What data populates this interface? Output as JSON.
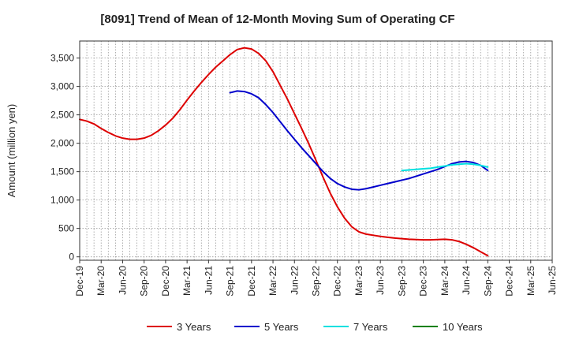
{
  "chart_data": {
    "type": "line",
    "title": "[8091]  Trend of Mean of 12-Month Moving Sum of Operating CF",
    "xlabel": "",
    "ylabel": "Amount (million yen)",
    "ylim": [
      -60,
      3800
    ],
    "yticks": [
      0,
      500,
      1000,
      1500,
      2000,
      2500,
      3000,
      3500
    ],
    "ytick_labels": [
      "0",
      "500",
      "1,000",
      "1,500",
      "2,000",
      "2,500",
      "3,000",
      "3,500"
    ],
    "xlim": [
      0,
      66
    ],
    "xticks": [
      0,
      3,
      6,
      9,
      12,
      15,
      18,
      21,
      24,
      27,
      30,
      33,
      36,
      39,
      42,
      45,
      48,
      51,
      54,
      57,
      60,
      63,
      66
    ],
    "xtick_labels": [
      "Dec-19",
      "Mar-20",
      "Jun-20",
      "Sep-20",
      "Dec-20",
      "Mar-21",
      "Jun-21",
      "Sep-21",
      "Dec-21",
      "Mar-22",
      "Jun-22",
      "Sep-22",
      "Dec-22",
      "Mar-23",
      "Jun-23",
      "Sep-23",
      "Dec-23",
      "Mar-24",
      "Jun-24",
      "Sep-24",
      "Dec-24",
      "Mar-25",
      "Jun-25"
    ],
    "grid": true,
    "legend_position": "bottom",
    "series": [
      {
        "name": "3 Years",
        "color": "#dd0000",
        "x": [
          0,
          1,
          2,
          3,
          4,
          5,
          6,
          7,
          8,
          9,
          10,
          11,
          12,
          13,
          14,
          15,
          16,
          17,
          18,
          19,
          20,
          21,
          22,
          23,
          24,
          25,
          26,
          27,
          28,
          29,
          30,
          31,
          32,
          33,
          34,
          35,
          36,
          37,
          38,
          39,
          40,
          41,
          42,
          43,
          44,
          45,
          46,
          47,
          48,
          49,
          50,
          51,
          52,
          53,
          54,
          55,
          56,
          57
        ],
        "values": [
          2420,
          2390,
          2340,
          2260,
          2190,
          2130,
          2090,
          2070,
          2070,
          2090,
          2140,
          2220,
          2320,
          2440,
          2590,
          2760,
          2920,
          3070,
          3210,
          3340,
          3450,
          3560,
          3650,
          3680,
          3660,
          3580,
          3450,
          3260,
          3020,
          2780,
          2520,
          2260,
          1990,
          1700,
          1400,
          1120,
          880,
          680,
          530,
          440,
          400,
          380,
          360,
          345,
          330,
          320,
          310,
          305,
          300,
          300,
          305,
          310,
          300,
          270,
          220,
          160,
          90,
          20
        ]
      },
      {
        "name": "5 Years",
        "color": "#0000cc",
        "x": [
          21,
          22,
          23,
          24,
          25,
          26,
          27,
          28,
          29,
          30,
          31,
          32,
          33,
          34,
          35,
          36,
          37,
          38,
          39,
          40,
          41,
          42,
          43,
          44,
          45,
          46,
          47,
          48,
          49,
          50,
          51,
          52,
          53,
          54,
          55,
          56,
          57
        ],
        "values": [
          2890,
          2920,
          2910,
          2870,
          2800,
          2680,
          2540,
          2380,
          2220,
          2070,
          1920,
          1780,
          1640,
          1500,
          1380,
          1290,
          1230,
          1190,
          1180,
          1200,
          1230,
          1260,
          1290,
          1320,
          1350,
          1380,
          1420,
          1460,
          1500,
          1540,
          1590,
          1640,
          1670,
          1680,
          1660,
          1610,
          1520
        ]
      },
      {
        "name": "7 Years",
        "color": "#00e0e0",
        "x": [
          45,
          46,
          47,
          48,
          49,
          50,
          51,
          52,
          53,
          54,
          55,
          56,
          57
        ],
        "values": [
          1520,
          1530,
          1540,
          1550,
          1560,
          1580,
          1600,
          1620,
          1630,
          1640,
          1630,
          1610,
          1580
        ]
      },
      {
        "name": "10 Years",
        "color": "#008000",
        "x": [],
        "values": []
      }
    ]
  }
}
